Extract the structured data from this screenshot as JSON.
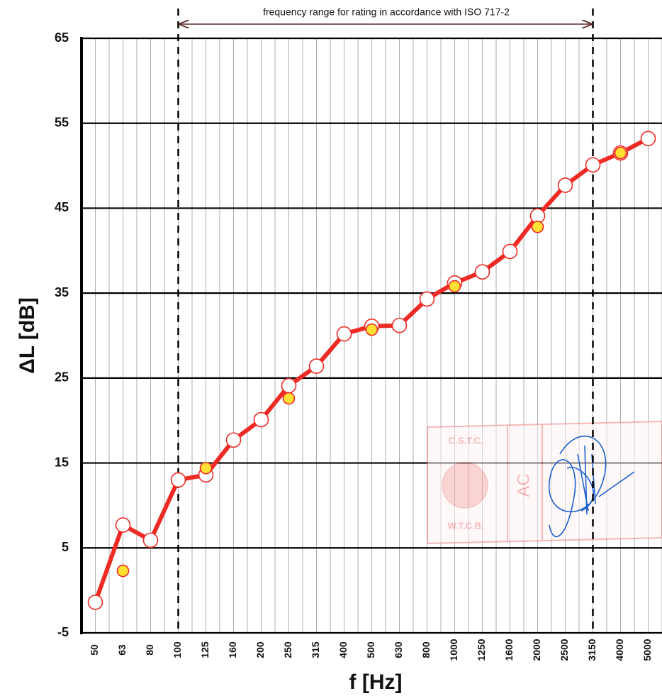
{
  "chart_data": {
    "type": "line",
    "annotation": "frequency range for rating in accordance with ISO 717-2",
    "rating_range": [
      100,
      3150
    ],
    "x_label": "f [Hz]",
    "y_label": "ΔL [dB]",
    "categories": [
      "50",
      "63",
      "80",
      "100",
      "125",
      "160",
      "200",
      "250",
      "315",
      "400",
      "500",
      "630",
      "800",
      "1000",
      "1250",
      "1600",
      "2000",
      "2500",
      "3150",
      "4000",
      "5000"
    ],
    "series": [
      {
        "color": "#ee2a24",
        "marker_fill": "#ffffff",
        "connected": true,
        "values": [
          -1.4,
          7.7,
          5.9,
          13.0,
          13.6,
          17.7,
          20.1,
          24.1,
          26.4,
          30.2,
          31.1,
          31.2,
          34.3,
          36.2,
          37.5,
          39.9,
          44.1,
          47.7,
          50.1,
          51.5,
          53.2
        ]
      },
      {
        "color": "#ee2a24",
        "marker_fill": "#ffe033",
        "connected": false,
        "values": [
          null,
          2.3,
          null,
          null,
          14.4,
          null,
          null,
          22.6,
          null,
          null,
          30.7,
          null,
          null,
          35.8,
          null,
          null,
          42.8,
          null,
          null,
          51.5,
          null
        ]
      }
    ],
    "ylim": [
      -5,
      65
    ],
    "yticks": [
      -5,
      5,
      15,
      25,
      35,
      45,
      55,
      65
    ],
    "grid": true
  },
  "stamp": {
    "top": "C.S.T.C.",
    "bottom": "W.T.C.B.",
    "initials": "AC"
  }
}
